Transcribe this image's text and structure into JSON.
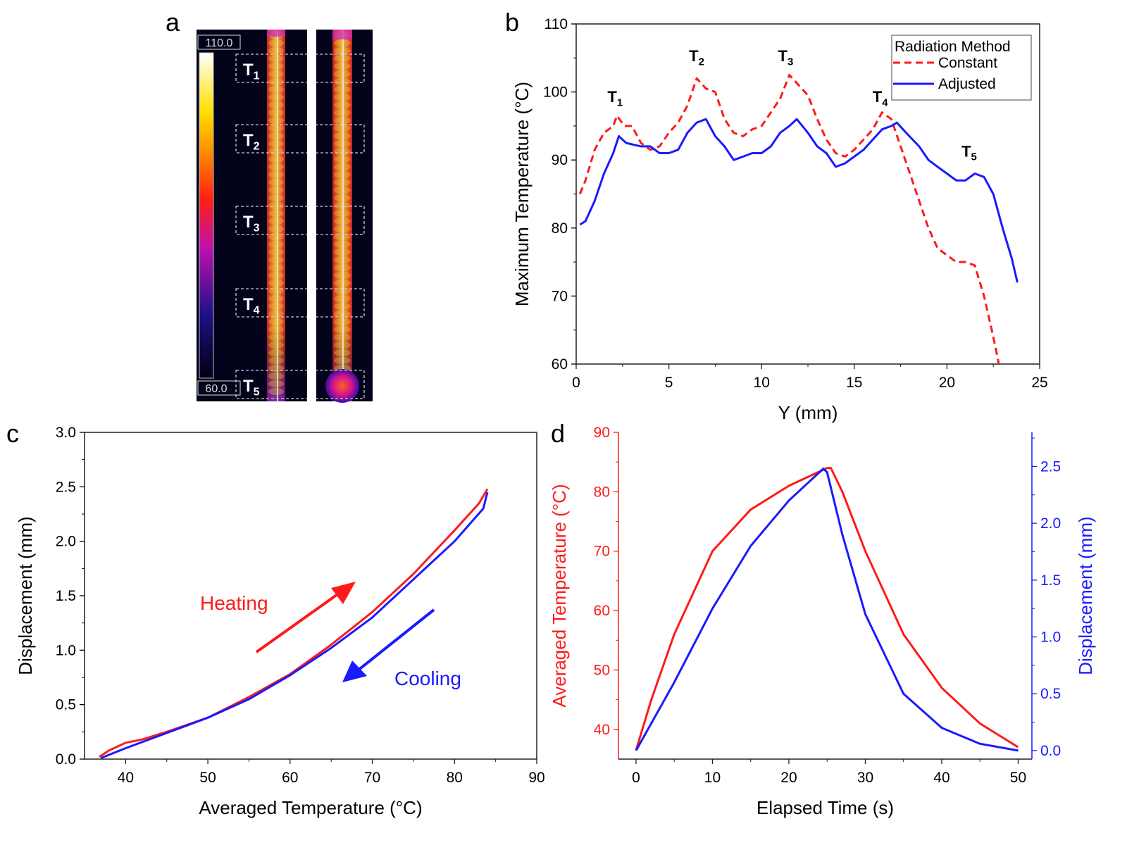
{
  "panel_labels": [
    "a",
    "b",
    "c",
    "d"
  ],
  "colors": {
    "red": "#ff1a1a",
    "blue": "#1a1aff"
  },
  "thermal": {
    "scale_max": "110.0",
    "scale_min": "60.0",
    "regions": [
      "T",
      "T",
      "T",
      "T",
      "T"
    ],
    "region_subs": [
      "1",
      "2",
      "3",
      "4",
      "5"
    ]
  },
  "chart_data": [
    {
      "id": "b",
      "type": "line",
      "xlabel": "Y (mm)",
      "ylabel": "Maximum Temperature (°C)",
      "xlim": [
        0,
        25
      ],
      "ylim": [
        60,
        110
      ],
      "xticks": [
        0,
        5,
        10,
        15,
        20,
        25
      ],
      "yticks": [
        60,
        70,
        80,
        90,
        100,
        110
      ],
      "legend": {
        "title": "Radiation Method",
        "placement": "top-right"
      },
      "annotations": [
        {
          "text": "T",
          "sub": "1",
          "x": 2.1,
          "y": 98.5
        },
        {
          "text": "T",
          "sub": "2",
          "x": 6.5,
          "y": 104.5
        },
        {
          "text": "T",
          "sub": "3",
          "x": 11.3,
          "y": 104.5
        },
        {
          "text": "T",
          "sub": "4",
          "x": 16.4,
          "y": 98.5
        },
        {
          "text": "T",
          "sub": "5",
          "x": 21.2,
          "y": 90.5
        }
      ],
      "series": [
        {
          "name": "Constant",
          "color": "#ff1a1a",
          "dash": true,
          "x": [
            0.2,
            0.5,
            1,
            1.5,
            2,
            2.2,
            2.6,
            3,
            3.5,
            4,
            4.5,
            5,
            5.5,
            6,
            6.5,
            7,
            7.5,
            8,
            8.5,
            9,
            9.5,
            10,
            10.5,
            11,
            11.5,
            12,
            12.5,
            13,
            13.5,
            14,
            14.5,
            15,
            15.5,
            16,
            16.5,
            17,
            17.5,
            18,
            18.5,
            19,
            19.5,
            20,
            20.5,
            21,
            21.5,
            22,
            22.5,
            22.8
          ],
          "y": [
            85,
            87,
            91.5,
            94,
            95,
            96.5,
            95,
            95,
            92.5,
            91.5,
            92,
            94,
            95.5,
            98,
            102,
            100.5,
            100,
            96,
            94,
            93.5,
            94.5,
            95,
            97,
            99,
            102.5,
            101,
            99.5,
            96,
            93,
            91,
            90.5,
            91.5,
            93,
            94.5,
            97,
            96,
            92,
            88,
            84,
            80,
            77,
            76,
            75,
            75,
            74.5,
            70,
            64,
            60
          ]
        },
        {
          "name": "Adjusted",
          "color": "#1a1aff",
          "dash": false,
          "x": [
            0.2,
            0.5,
            1,
            1.5,
            2,
            2.3,
            2.7,
            3.5,
            4,
            4.5,
            5,
            5.5,
            6,
            6.5,
            7,
            7.5,
            8,
            8.5,
            9,
            9.5,
            10,
            10.5,
            11,
            11.5,
            11.9,
            12.5,
            13,
            13.5,
            14,
            14.5,
            15,
            15.5,
            16,
            16.5,
            17,
            17.3,
            17.8,
            18.5,
            19,
            19.5,
            20,
            20.5,
            21,
            21.5,
            22,
            22.5,
            23,
            23.5,
            23.8
          ],
          "y": [
            80.5,
            81,
            84,
            88,
            91,
            93.5,
            92.5,
            92,
            92,
            91,
            91,
            91.5,
            94,
            95.5,
            96,
            93.5,
            92,
            90,
            90.5,
            91,
            91,
            92,
            94,
            95,
            96,
            94,
            92,
            91,
            89,
            89.5,
            90.5,
            91.5,
            93,
            94.5,
            95,
            95.5,
            94,
            92,
            90,
            89,
            88,
            87,
            87,
            88,
            87.5,
            85,
            80,
            75.5,
            72
          ]
        }
      ]
    },
    {
      "id": "c",
      "type": "line",
      "xlabel": "Averaged Temperature (°C)",
      "ylabel": "Displacement (mm)",
      "xlim": [
        35,
        90
      ],
      "ylim": [
        0,
        3
      ],
      "xticks": [
        40,
        50,
        60,
        70,
        80,
        90
      ],
      "yticks": [
        0.0,
        0.5,
        1.0,
        1.5,
        2.0,
        2.5,
        3.0
      ],
      "annotations": [
        {
          "text": "Heating",
          "color": "#ff1a1a"
        },
        {
          "text": "Cooling",
          "color": "#1a1aff"
        }
      ],
      "series": [
        {
          "name": "Heating",
          "color": "#ff1a1a",
          "x": [
            36.8,
            38,
            40,
            42,
            45,
            50,
            55,
            60,
            65,
            70,
            75,
            80,
            83,
            84
          ],
          "y": [
            0.02,
            0.08,
            0.15,
            0.18,
            0.25,
            0.38,
            0.57,
            0.78,
            1.05,
            1.35,
            1.7,
            2.1,
            2.35,
            2.48
          ]
        },
        {
          "name": "Cooling",
          "color": "#1a1aff",
          "x": [
            84,
            83.5,
            80,
            75,
            70,
            65,
            60,
            55,
            50,
            45,
            40,
            37
          ],
          "y": [
            2.45,
            2.3,
            2.0,
            1.65,
            1.3,
            1.02,
            0.77,
            0.55,
            0.38,
            0.24,
            0.1,
            0.01
          ]
        }
      ]
    },
    {
      "id": "d",
      "type": "line",
      "xlabel": "Elapsed Time (s)",
      "ylabel": "Averaged Temperature (°C)",
      "ylabel_right": "Displacement (mm)",
      "xlim": [
        -2.3,
        51.8
      ],
      "ylim": [
        35,
        90
      ],
      "ylim_right": [
        -0.075,
        2.8
      ],
      "xticks": [
        0,
        10,
        20,
        30,
        40,
        50
      ],
      "yticks": [
        40,
        50,
        60,
        70,
        80,
        90
      ],
      "yticks_right": [
        "0.0",
        "0.5",
        "1.0",
        "1.5",
        "2.0",
        "2.5"
      ],
      "series": [
        {
          "name": "Averaged Temperature",
          "color": "#ff1a1a",
          "axis": "left",
          "x": [
            0,
            2,
            5,
            10,
            15,
            20,
            25,
            25.5,
            27,
            30,
            35,
            40,
            45,
            50
          ],
          "y": [
            36.5,
            45,
            56,
            70,
            77,
            81,
            84,
            84,
            80,
            70,
            56,
            47,
            41,
            37
          ]
        },
        {
          "name": "Displacement",
          "color": "#1a1aff",
          "axis": "right",
          "x": [
            0,
            5,
            10,
            15,
            20,
            24.5,
            25,
            27,
            30,
            35,
            40,
            45,
            50
          ],
          "y": [
            0.0,
            0.6,
            1.25,
            1.8,
            2.2,
            2.48,
            2.45,
            1.9,
            1.2,
            0.5,
            0.2,
            0.06,
            0.0
          ]
        }
      ]
    }
  ]
}
